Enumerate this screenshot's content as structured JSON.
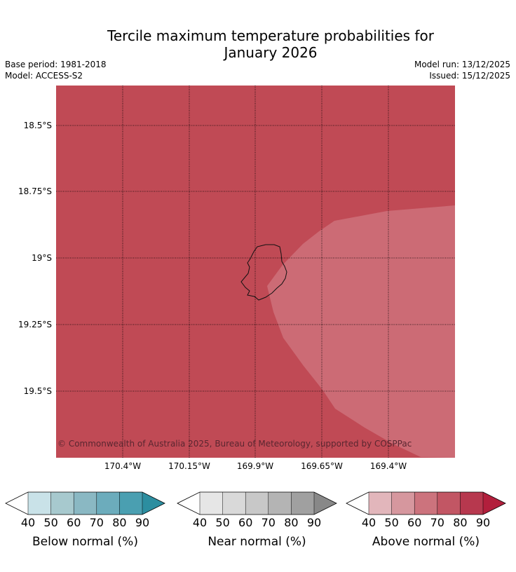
{
  "header": {
    "title_line1": "Tercile maximum temperature probabilities for",
    "title_line2": "January 2026",
    "base_period": "Base period: 1981-2018",
    "model": "Model: ACCESS-S2",
    "model_run": "Model run: 13/12/2025",
    "issued": "Issued: 15/12/2025"
  },
  "map": {
    "background_color": "#c04a55",
    "highlight_color": "#cc6b75",
    "gridlines": "dotted",
    "lat_labels": [
      "18.5°S",
      "18.75°S",
      "19°S",
      "19.25°S",
      "19.5°S"
    ],
    "lon_labels": [
      "170.4°W",
      "170.15°W",
      "169.9°W",
      "169.65°W",
      "169.4°W"
    ],
    "copyright": "© Commonwealth of Australia 2025, Bureau of Meteorology, supported by COSPPac"
  },
  "colorbars": [
    {
      "name": "below",
      "label": "Below normal (%)",
      "ticks": [
        "40",
        "50",
        "60",
        "70",
        "80",
        "90"
      ],
      "colors": [
        "#c9e2e8",
        "#a7c9ce",
        "#8ab8c3",
        "#6cacbc",
        "#4a9fb1",
        "#2c8ea0"
      ]
    },
    {
      "name": "near",
      "label": "Near normal (%)",
      "ticks": [
        "40",
        "50",
        "60",
        "70",
        "80",
        "90"
      ],
      "colors": [
        "#e6e6e6",
        "#d9d9d9",
        "#c8c8c8",
        "#b4b4b4",
        "#a0a0a0",
        "#888888"
      ]
    },
    {
      "name": "above",
      "label": "Above normal (%)",
      "ticks": [
        "40",
        "50",
        "60",
        "70",
        "80",
        "90"
      ],
      "colors": [
        "#e2b6bb",
        "#d6979e",
        "#cc737d",
        "#c25664",
        "#b7384e",
        "#b21f3c"
      ]
    }
  ]
}
